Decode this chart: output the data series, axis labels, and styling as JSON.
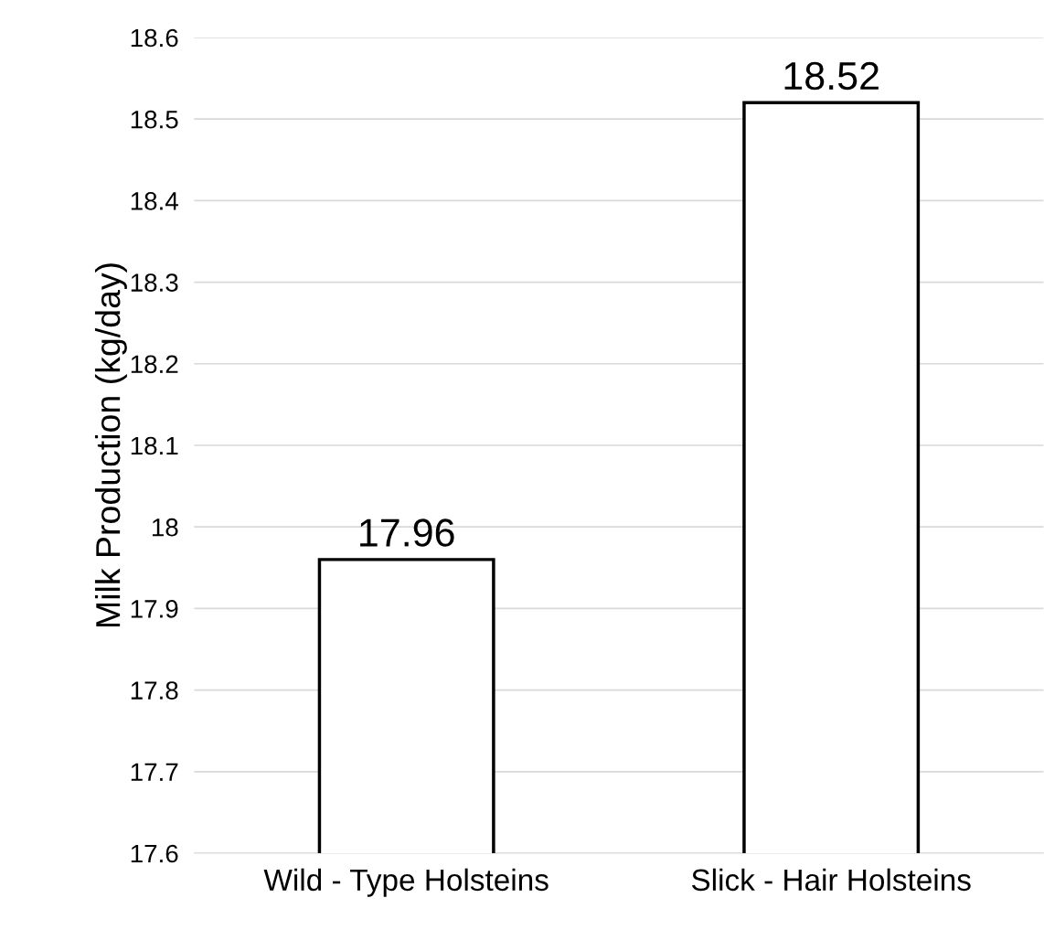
{
  "chart_data": {
    "type": "bar",
    "categories": [
      "Wild - Type Holsteins",
      "Slick - Hair Holsteins"
    ],
    "values": [
      17.96,
      18.52
    ],
    "color": "#ffffff",
    "ylabel": "Milk Production (kg/day)",
    "ylim": [
      17.6,
      18.6
    ],
    "yticks": [
      17.6,
      17.7,
      17.8,
      17.9,
      {
        "value": 18,
        "label": "18"
      },
      18.1,
      18.2,
      18.3,
      18.4,
      18.5,
      18.6
    ],
    "grid": "y",
    "data_labels": true
  }
}
